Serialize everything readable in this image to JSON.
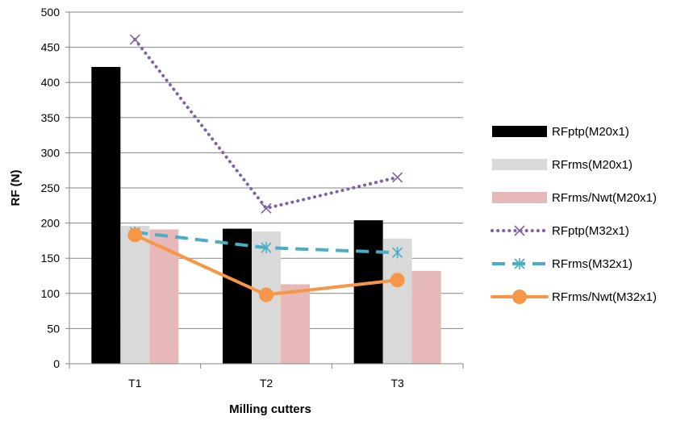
{
  "chart_data": {
    "type": "bar",
    "categories": [
      "T1",
      "T2",
      "T3"
    ],
    "xlabel": "Milling cutters",
    "ylabel": "RF (N)",
    "ylim": [
      0,
      500
    ],
    "y_ticks": [
      "0",
      "50",
      "100",
      "150",
      "200",
      "250",
      "300",
      "350",
      "400",
      "450",
      "500"
    ],
    "grid": true,
    "legend_position": "right",
    "bar_series": [
      {
        "name": "RFptp(M20x1)",
        "values": [
          422,
          192,
          204
        ],
        "color": "#000000"
      },
      {
        "name": "RFrms(M20x1)",
        "values": [
          196,
          188,
          178
        ],
        "color": "#d9d9d9"
      },
      {
        "name": "RFrms/Nwt(M20x1)",
        "values": [
          191,
          113,
          132
        ],
        "color": "#e6b9b8"
      }
    ],
    "line_series": [
      {
        "name": "RFptp(M32x1)",
        "values": [
          461,
          221,
          265
        ],
        "color": "#7f62a4",
        "style": "dotted",
        "marker": "x"
      },
      {
        "name": "RFrms(M32x1)",
        "values": [
          187,
          165,
          158
        ],
        "color": "#4aacc6",
        "style": "dashed",
        "marker": "asterisk"
      },
      {
        "name": "RFrms/Nwt(M32x1)",
        "values": [
          183,
          98,
          119
        ],
        "color": "#f79646",
        "style": "solid",
        "marker": "circle"
      }
    ]
  }
}
